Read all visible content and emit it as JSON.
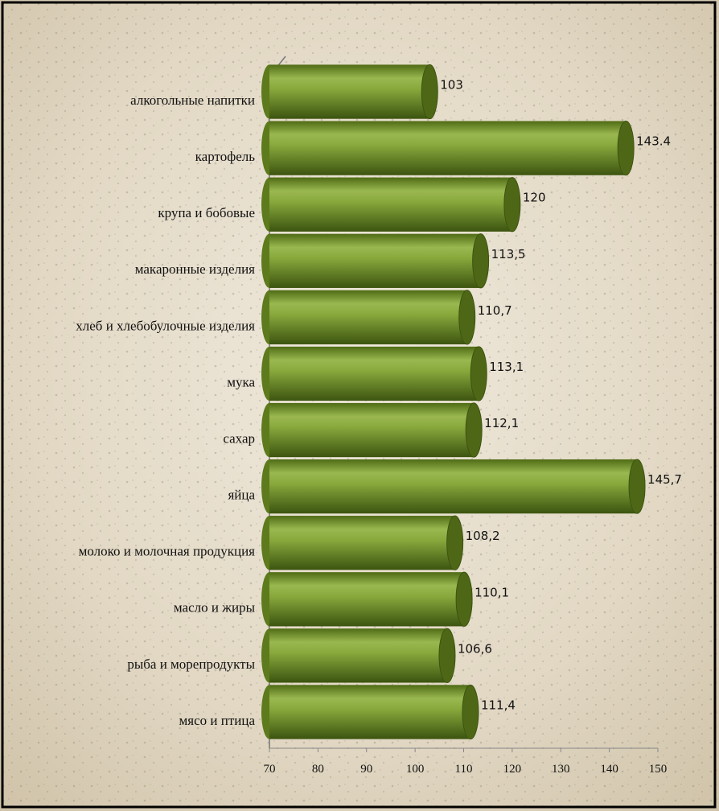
{
  "chart_data": {
    "type": "bar",
    "orientation": "horizontal",
    "categories": [
      "алкогольные напитки",
      "картофель",
      "крупа и бобовые",
      "макаронные изделия",
      "хлеб и хлебобулочные изделия",
      "мука",
      "сахар",
      "яйца",
      "молоко и молочная продукция",
      "масло и жиры",
      "рыба и морепродукты",
      "мясо и птица"
    ],
    "values": [
      103,
      143.4,
      120,
      113.5,
      110.7,
      113.1,
      112.1,
      145.7,
      108.2,
      110.1,
      106.6,
      111.4
    ],
    "value_labels": [
      "103",
      "143.4",
      "120",
      "113,5",
      "110,7",
      "113,1",
      "112,1",
      "145,7",
      "108,2",
      "110,1",
      "106,6",
      "111,4"
    ],
    "color": "#6b8e23",
    "xlim": [
      70,
      150
    ],
    "xticks": [
      70,
      80,
      90,
      100,
      110,
      120,
      130,
      140,
      150
    ]
  }
}
